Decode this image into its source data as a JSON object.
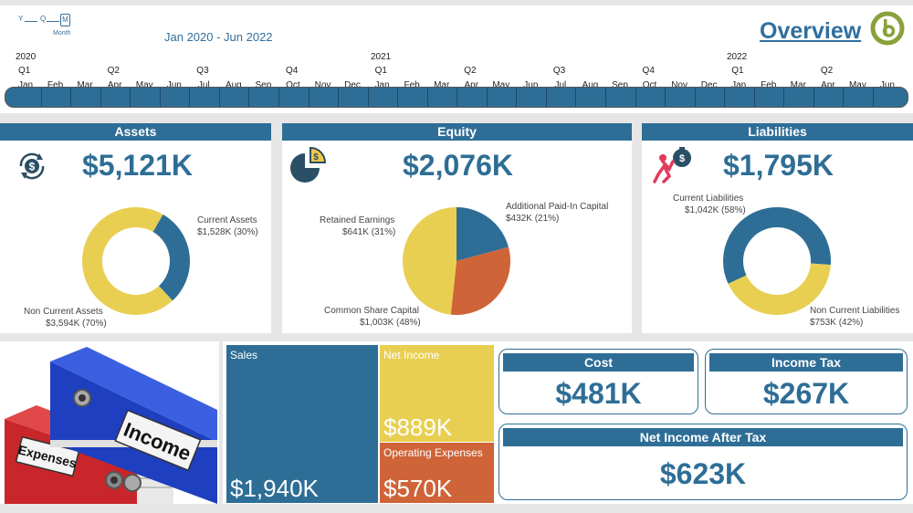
{
  "slicer": {
    "y_label": "Y",
    "q_label": "Q",
    "m_label": "M",
    "level_caption": "Month",
    "range_text": "Jan 2020 - Jun 2022"
  },
  "header": {
    "title": "Overview"
  },
  "timeline": {
    "years": [
      "2020",
      "2021",
      "2022"
    ],
    "quarters": [
      "Q1",
      "Q2",
      "Q3",
      "Q4",
      "Q1",
      "Q2",
      "Q3",
      "Q4",
      "Q1",
      "Q2"
    ],
    "months": [
      "Jan",
      "Feb",
      "Mar",
      "Apr",
      "May",
      "Jun",
      "Jul",
      "Aug",
      "Sep",
      "Oct",
      "Nov",
      "Dec",
      "Jan",
      "Feb",
      "Mar",
      "Apr",
      "May",
      "Jun",
      "Jul",
      "Aug",
      "Sep",
      "Oct",
      "Nov",
      "Dec",
      "Jan",
      "Feb",
      "Mar",
      "Apr",
      "May",
      "Jun"
    ]
  },
  "assets": {
    "title": "Assets",
    "value": "$5,121K",
    "slice1_label": "Current Assets",
    "slice1_value": "$1,528K (30%)",
    "slice2_label": "Non Current Assets",
    "slice2_value": "$3,594K (70%)"
  },
  "equity": {
    "title": "Equity",
    "value": "$2,076K",
    "slice1_label": "Additional Paid-In Capital",
    "slice1_value": "$432K (21%)",
    "slice2_label": "Retained Earnings",
    "slice2_value": "$641K (31%)",
    "slice3_label": "Common Share Capital",
    "slice3_value": "$1,003K (48%)"
  },
  "liabilities": {
    "title": "Liabilities",
    "value": "$1,795K",
    "slice1_label": "Current Liabilities",
    "slice1_value": "$1,042K (58%)",
    "slice2_label": "Non Current Liabilities",
    "slice2_value": "$753K (42%)"
  },
  "image_text": {
    "folder1": "Income",
    "folder2": "Expenses"
  },
  "treemap": {
    "sales_label": "Sales",
    "sales_value": "$1,940K",
    "net_income_label": "Net Income",
    "net_income_value": "$889K",
    "opex_label": "Operating Expenses",
    "opex_value": "$570K"
  },
  "kpis": {
    "cost_title": "Cost",
    "cost_value": "$481K",
    "tax_title": "Income Tax",
    "tax_value": "$267K",
    "niat_title": "Net Income After Tax",
    "niat_value": "$623K"
  },
  "chart_data": [
    {
      "type": "pie",
      "title": "Assets",
      "categories": [
        "Current Assets",
        "Non Current Assets"
      ],
      "values": [
        1528,
        3594
      ],
      "colors": [
        "#2e6e96",
        "#e8cf52"
      ]
    },
    {
      "type": "pie",
      "title": "Equity",
      "categories": [
        "Additional Paid-In Capital",
        "Retained Earnings",
        "Common Share Capital"
      ],
      "values": [
        432,
        641,
        1003
      ],
      "colors": [
        "#2e6e96",
        "#cf6438",
        "#e8cf52"
      ]
    },
    {
      "type": "pie",
      "title": "Liabilities",
      "categories": [
        "Current Liabilities",
        "Non Current Liabilities"
      ],
      "values": [
        1042,
        753
      ],
      "colors": [
        "#2e6e96",
        "#e8cf52"
      ]
    }
  ],
  "colors": {
    "primary": "#2e6e96",
    "yellow": "#e8cf52",
    "orange": "#cf6438",
    "logo_green": "#8aa13a"
  }
}
